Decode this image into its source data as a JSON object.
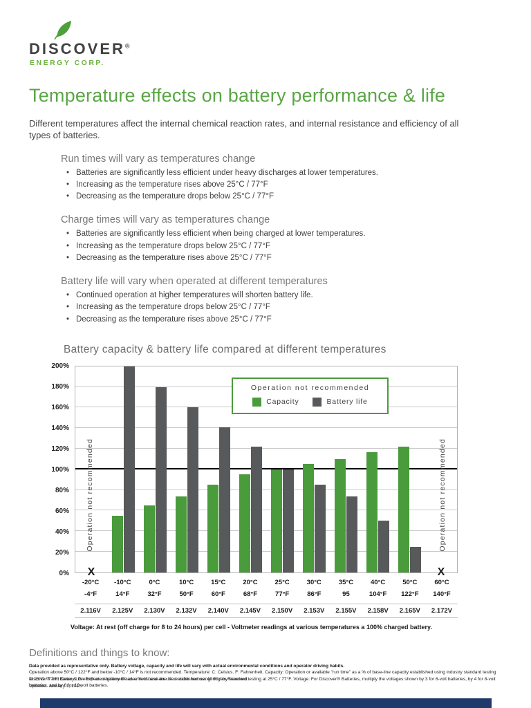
{
  "page": {
    "logo": {
      "name": "DISCOVER",
      "registered": "®",
      "tagline": "ENERGY CORP."
    },
    "title": "Temperature effects on battery performance & life",
    "intro": "Different temperatures affect the internal chemical reaction rates, and internal resistance and efficiency of all types of batteries.",
    "sections": [
      {
        "heading": "Run times will vary as temperatures change",
        "bullets": [
          "Batteries are significantly less efficient under heavy discharges at lower temperatures.",
          "Increasing as the temperature rises above 25°C / 77°F",
          "Decreasing as the temperature drops below 25°C / 77°F"
        ]
      },
      {
        "heading": "Charge times will vary as temperatures change",
        "bullets": [
          "Batteries are significantly less efficient when being charged at lower temperatures.",
          "Increasing as the temperature drops below 25°C / 77°F",
          "Decreasing as the temperature rises above 25°C / 77°F"
        ]
      },
      {
        "heading": "Battery life will vary when operated at different temperatures",
        "bullets": [
          "Continued operation at higher temperatures will shorten battery life.",
          "Increasing as the temperature drops below 25°C / 77°F",
          "Decreasing as the temperature rises above 25°C / 77°F"
        ]
      }
    ],
    "chart_title": "Battery capacity & battery life compared at different temperatures",
    "definitions_heading": "Definitions and things to know:",
    "definitions_line1": "Data provided as representative only.  Battery voltage, capacity and life will vary with actual environmental conditions and operator driving habits.",
    "definitions_line2": "Operation above 50°C / 122°F and below -10°C / 14°F is not recommended.  Temperature: C: Celsius. F: Fahrenheit. Capacity: Operation or available \"run time\" as a % of base-line capacity established using industry standard testing at 25°C / 77°F. Battery Life: Expected battery life as a % of base-line life established using industry standard testing at 25°C / 77°F. Voltage: For Discover® Batteries, multiply the voltages shown by 3 for 6-volt batteries, by 4 for 8-volt batteries, and by 6 for 12-volt batteries.",
    "footer_line1": "Discover® and Clean & Green® are registered trade marks and are used under license.  All Rights Reserved.",
    "footer_line2": "Updated: January 1, 2015",
    "colors": {
      "accent_green": "#5aa646",
      "logo_green": "#6cb33f",
      "heading_gray": "#77787b",
      "navy_bar": "#1f3a6a"
    }
  },
  "chart_data": {
    "type": "bar",
    "title": "Battery capacity & battery life compared at different temperatures",
    "legend_title": "Operation not recommended",
    "legend_position": "top-right",
    "ylim": [
      0,
      200
    ],
    "y_tick_step": 20,
    "reference_line": 100,
    "grid": true,
    "left_annotation": "Operation not recommended",
    "right_annotation": "Operation not recommended",
    "not_recommended_marker": "X",
    "categories_c": [
      "-20°C",
      "-10°C",
      "0°C",
      "10°C",
      "15°C",
      "20°C",
      "25°C",
      "30°C",
      "35°C",
      "40°C",
      "50°C",
      "60°C"
    ],
    "categories_f": [
      "-4°F",
      "14°F",
      "32°F",
      "50°F",
      "60°F",
      "68°F",
      "77°F",
      "86°F",
      "95",
      "104°F",
      "122°F",
      "140°F"
    ],
    "voltages": [
      "2.116V",
      "2.125V",
      "2.130V",
      "2.132V",
      "2.140V",
      "2.145V",
      "2.150V",
      "2.153V",
      "2.155V",
      "2.158V",
      "2.165V",
      "2.172V"
    ],
    "series": [
      {
        "name": "Capacity",
        "color": "#4a9b3c",
        "values": [
          null,
          55,
          65,
          74,
          85,
          95,
          100,
          105,
          110,
          117,
          122,
          null
        ]
      },
      {
        "name": "Battery life",
        "color": "#58595b",
        "values": [
          null,
          200,
          180,
          160,
          141,
          122,
          100,
          85,
          74,
          50,
          25,
          null
        ]
      }
    ],
    "caption": "Voltage: At rest (off charge for 8 to 24 hours) per cell - Voltmeter readings at various temperatures a 100% charged battery."
  }
}
